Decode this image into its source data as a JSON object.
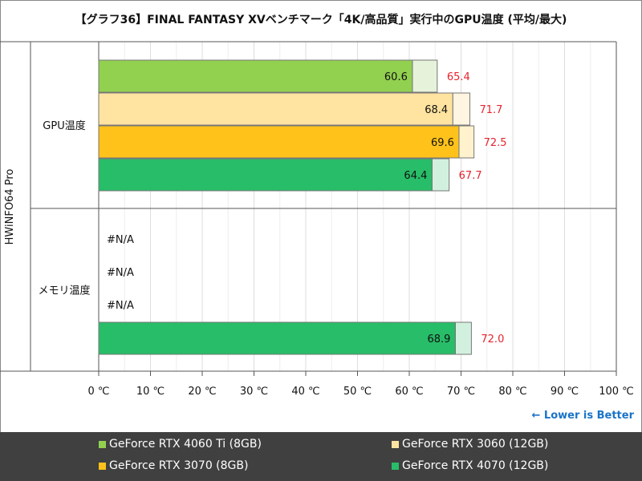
{
  "title": "【グラフ36】FINAL FANTASY XVベンチマーク「4K/高品質」実行中のGPU温度 (平均/最大)",
  "note": "← Lower is Better",
  "chart_data": {
    "type": "bar",
    "orientation": "horizontal",
    "source_label": "HWiNFO64 Pro",
    "categories": [
      "GPU温度",
      "メモリ温度"
    ],
    "xlim": [
      0,
      100
    ],
    "xticks": [
      "0 ℃",
      "10 ℃",
      "20 ℃",
      "30 ℃",
      "40 ℃",
      "50 ℃",
      "60 ℃",
      "70 ℃",
      "80 ℃",
      "90 ℃",
      "100 ℃"
    ],
    "na_label": "#N/A",
    "series": [
      {
        "name": "GeForce RTX 4060 Ti (8GB)",
        "color": "#92d050",
        "light": "#e6f2d9",
        "avg": [
          60.6,
          null
        ],
        "max": [
          65.4,
          null
        ],
        "avg_labels": [
          "60.6",
          "#N/A"
        ],
        "max_labels": [
          "65.4",
          ""
        ]
      },
      {
        "name": "GeForce RTX 3060 (12GB)",
        "color": "#ffe3a0",
        "light": "#fff5e0",
        "avg": [
          68.4,
          null
        ],
        "max": [
          71.7,
          null
        ],
        "avg_labels": [
          "68.4",
          "#N/A"
        ],
        "max_labels": [
          "71.7",
          ""
        ]
      },
      {
        "name": "GeForce RTX 3070 (8GB)",
        "color": "#ffc21a",
        "light": "#fff2cc",
        "avg": [
          69.6,
          null
        ],
        "max": [
          72.5,
          null
        ],
        "avg_labels": [
          "69.6",
          "#N/A"
        ],
        "max_labels": [
          "72.5",
          ""
        ]
      },
      {
        "name": "GeForce RTX 4070 (12GB)",
        "color": "#28bd68",
        "light": "#d2f0de",
        "avg": [
          64.4,
          68.9
        ],
        "max": [
          67.7,
          72.0
        ],
        "avg_labels": [
          "64.4",
          "68.9"
        ],
        "max_labels": [
          "67.7",
          "72.0"
        ]
      }
    ],
    "grid": true,
    "legend_placement": "bottom"
  }
}
